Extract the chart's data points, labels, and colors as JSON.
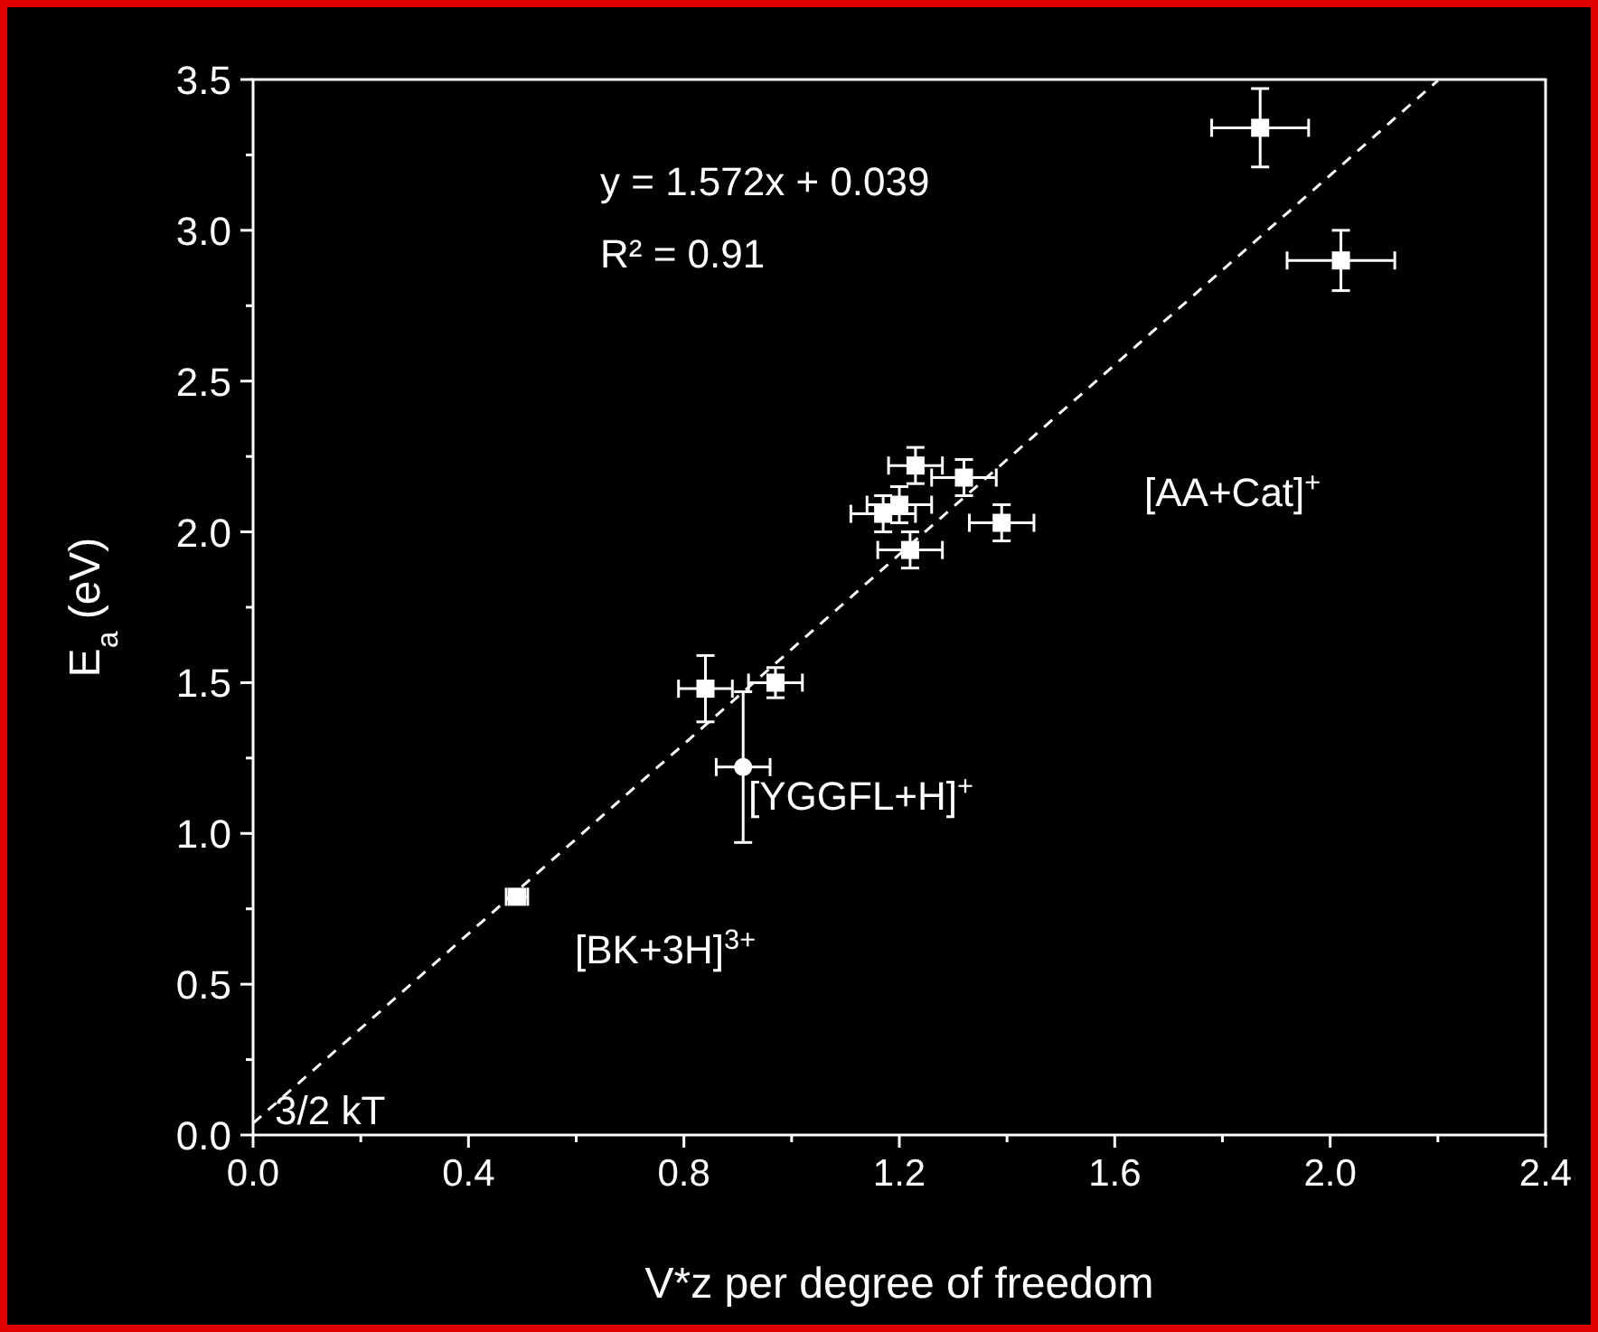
{
  "chart_data": {
    "type": "scatter",
    "xlabel": "V*z per degree of freedom",
    "ylabel": "E$_{a}$ (eV)",
    "xlim": [
      0,
      2.4
    ],
    "xticks": [
      {
        "value": 0,
        "label": "0.0"
      },
      0.4,
      0.8,
      1.2,
      1.6,
      {
        "value": 2,
        "label": "2.0"
      },
      2.4
    ],
    "ylim": [
      0,
      3.5
    ],
    "yticks": [
      {
        "value": 0,
        "label": "0.0"
      },
      0.5,
      {
        "value": 1,
        "label": "1.0"
      },
      1.5,
      {
        "value": 2,
        "label": "2.0"
      },
      2.5,
      {
        "value": 3,
        "label": "3.0"
      },
      3.5
    ],
    "series": [
      {
        "marker": "square",
        "color": "#ffffff",
        "x": [
          1.87,
          2.02,
          1.23,
          1.32,
          1.17,
          1.2,
          1.39,
          1.22,
          0.84,
          0.97
        ],
        "values": [
          3.34,
          2.9,
          2.22,
          2.18,
          2.06,
          2.09,
          2.03,
          1.94,
          1.48,
          1.5
        ],
        "errors": [
          0.13,
          0.1,
          0.06,
          0.06,
          0.06,
          0.06,
          0.06,
          0.06,
          0.11,
          0.05
        ],
        "xerrors": [
          0.09,
          0.1,
          0.05,
          0.06,
          0.06,
          0.06,
          0.06,
          0.06,
          0.05,
          0.05
        ]
      },
      {
        "marker": "circle",
        "color": "#ffffff",
        "x": [
          0.91
        ],
        "values": [
          1.22
        ],
        "errors": [
          0.25
        ],
        "xerrors": [
          0.05
        ]
      },
      {
        "marker": "square",
        "color": "#ffffff",
        "x": [
          0.49
        ],
        "values": [
          0.79
        ],
        "errors": [
          null
        ],
        "xerrors": [
          0.02
        ]
      },
      {
        "type": "line",
        "line_style": "dashed",
        "color": "#ffffff",
        "x": [
          0,
          2.2
        ],
        "values": [
          0.039,
          3.497
        ]
      }
    ],
    "annotations": [
      "y = 1.572x + 0.039",
      "R² = 0.91",
      "[AA+Cat]$^{+}$",
      "[YGGFL+H]$^{+}$",
      "[BK+3H]$^{3+}$",
      "3/2 kT"
    ]
  }
}
